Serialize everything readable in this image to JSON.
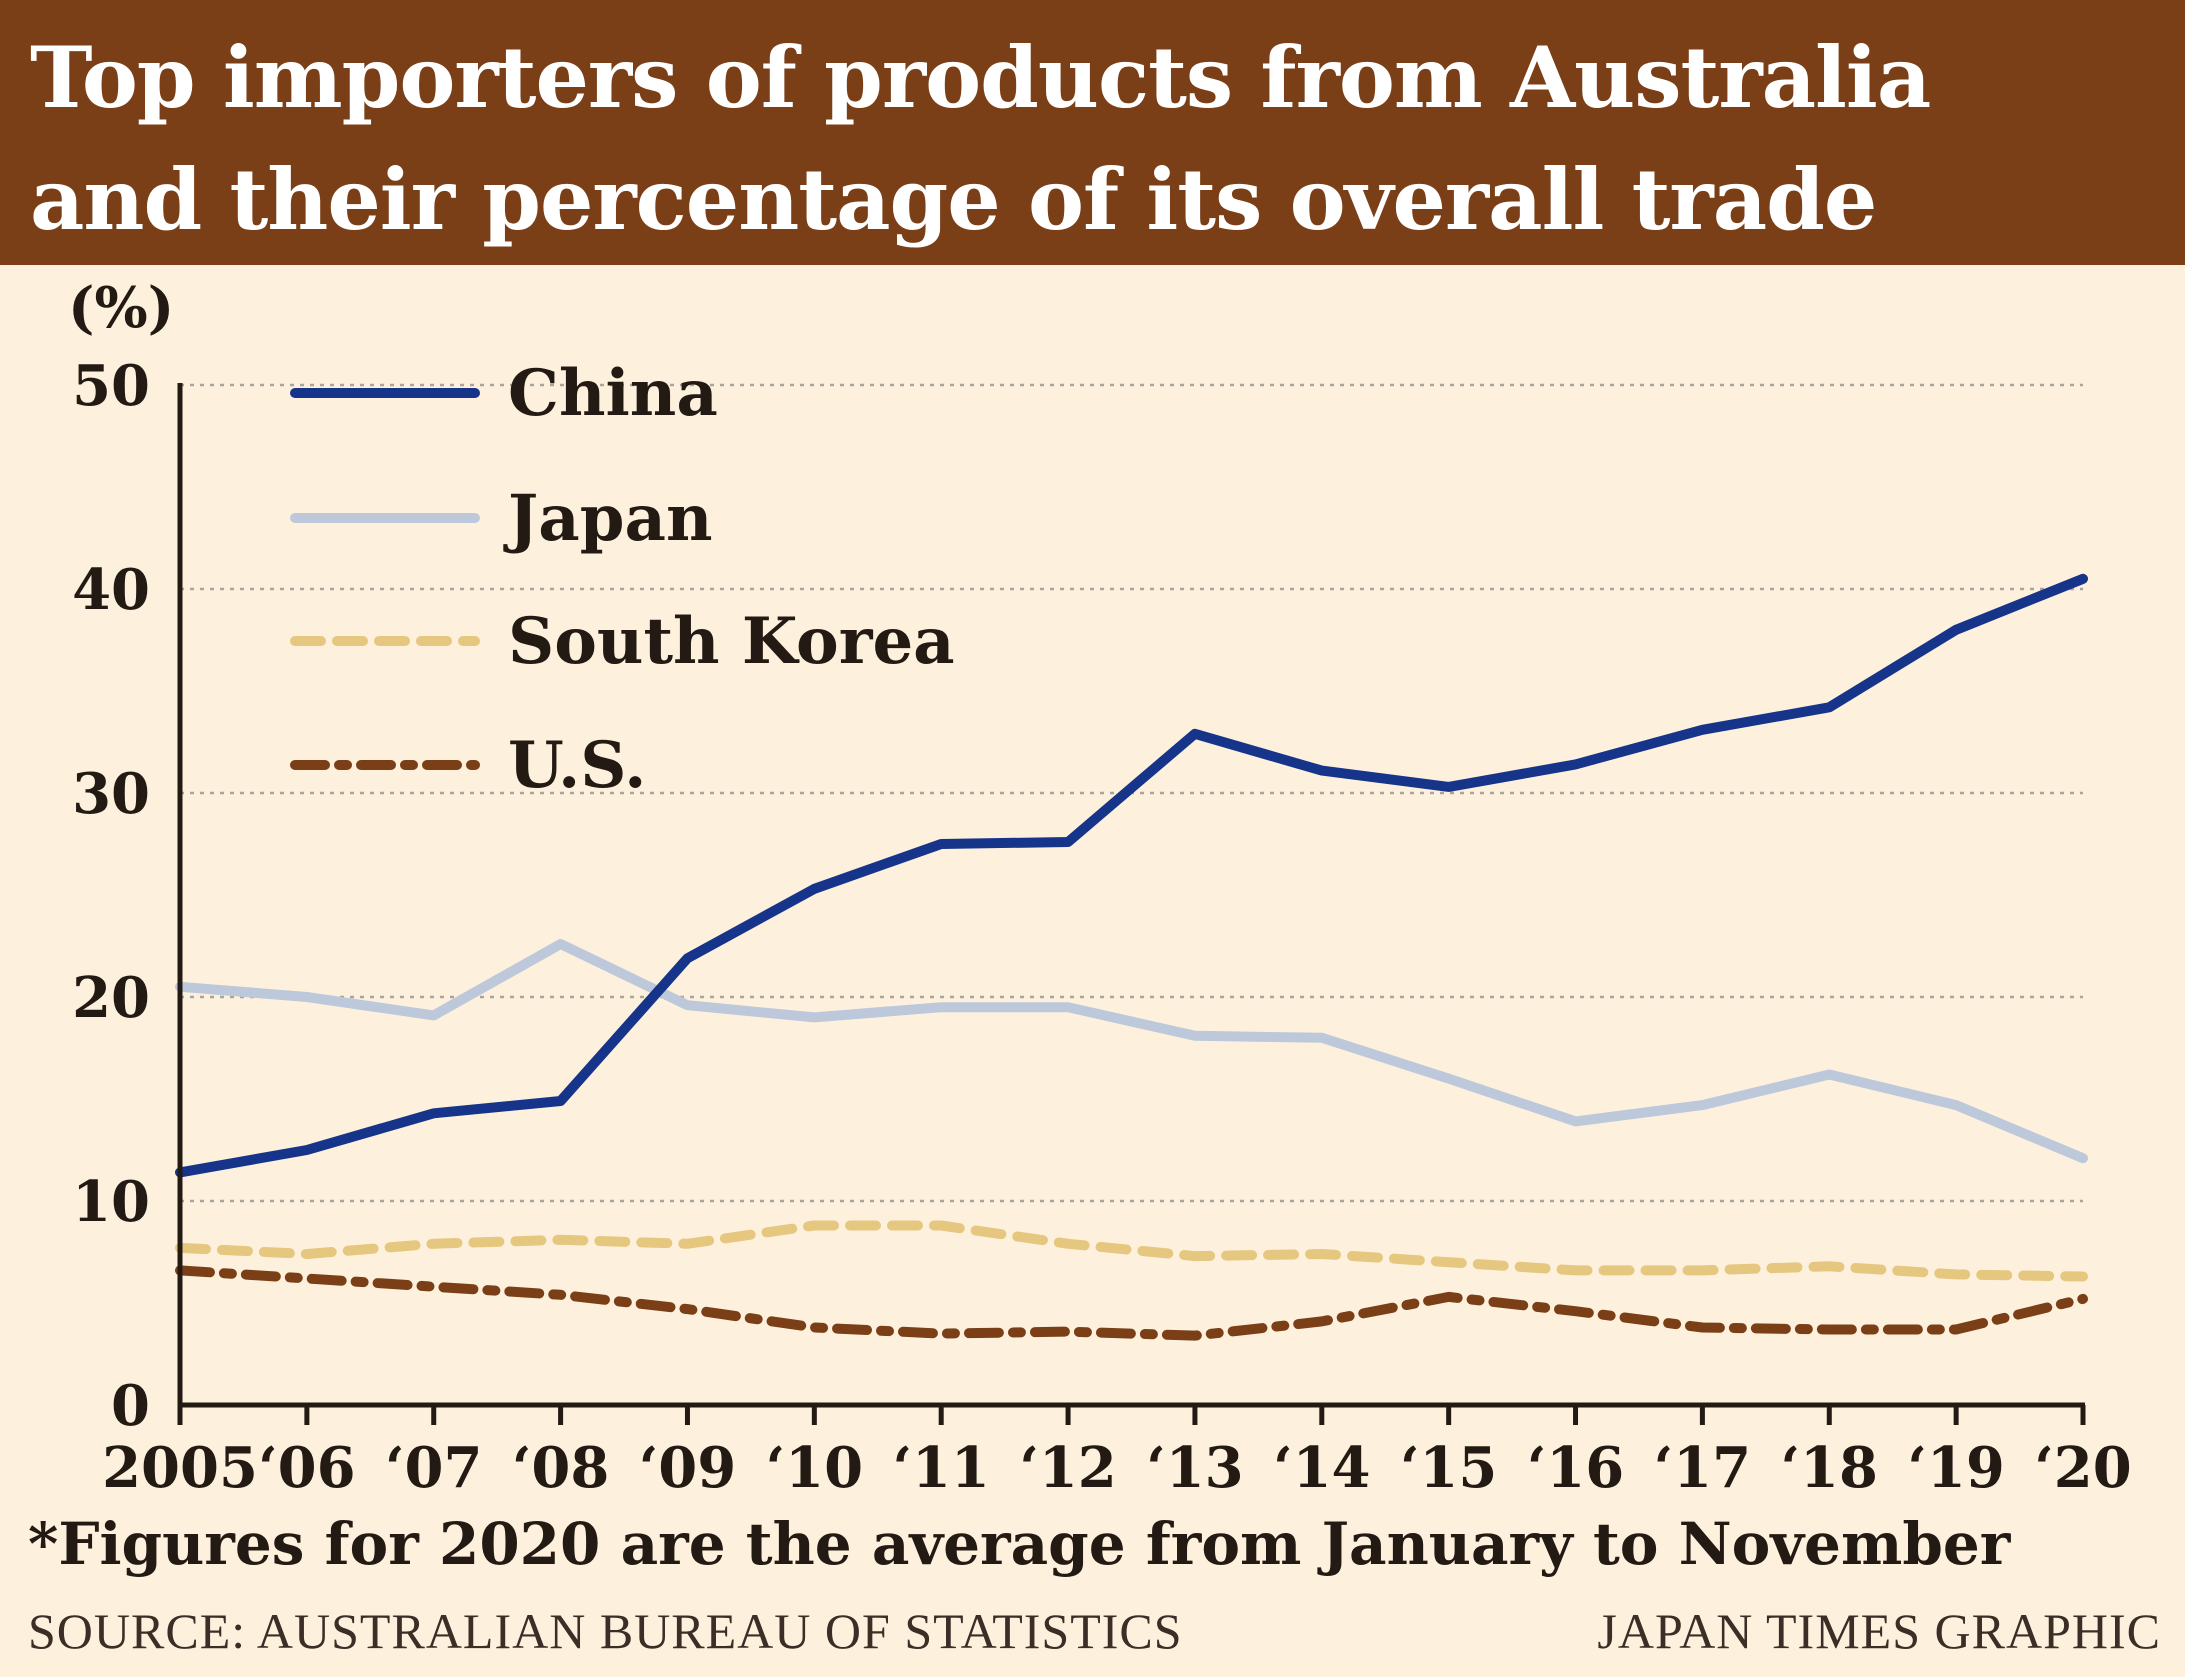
{
  "title_line1": "Top importers of products from Australia",
  "title_line2": "and their percentage of its overall trade",
  "note": "*Figures for 2020 are the average from January to November",
  "source": "SOURCE: AUSTRALIAN BUREAU OF STATISTICS",
  "credit": "JAPAN TIMES GRAPHIC",
  "colors": {
    "header": "#7b3f17",
    "background": "#fdf1de",
    "china": "#15348a",
    "japan": "#bdc8db",
    "south_korea": "#e6c77f",
    "us": "#7b3f17"
  },
  "chart_data": {
    "type": "line",
    "ylabel": "(%)",
    "ylim": [
      0,
      50
    ],
    "yticks": [
      0,
      10,
      20,
      30,
      40,
      50
    ],
    "grid": true,
    "legend_position": "top-left",
    "categories": [
      "2005",
      "‘06",
      "‘07",
      "‘08",
      "‘09",
      "‘10",
      "‘11",
      "‘12",
      "‘13",
      "‘14",
      "‘15",
      "‘16",
      "‘17",
      "‘18",
      "‘19",
      "‘20"
    ],
    "series": [
      {
        "name": "China",
        "style": "solid",
        "color": "#15348a",
        "values": [
          11.4,
          12.5,
          14.3,
          14.9,
          21.9,
          25.3,
          27.5,
          27.6,
          32.9,
          31.1,
          30.3,
          31.4,
          33.1,
          34.2,
          38.0,
          40.5
        ]
      },
      {
        "name": "Japan",
        "style": "solid",
        "color": "#bdc8db",
        "values": [
          20.5,
          20.0,
          19.1,
          22.6,
          19.6,
          19.0,
          19.5,
          19.5,
          18.1,
          18.0,
          16.0,
          13.9,
          14.7,
          16.2,
          14.7,
          12.1
        ]
      },
      {
        "name": "South Korea",
        "style": "dashed",
        "color": "#e6c77f",
        "values": [
          7.7,
          7.4,
          7.9,
          8.1,
          7.9,
          8.8,
          8.8,
          7.9,
          7.3,
          7.4,
          7.0,
          6.6,
          6.6,
          6.8,
          6.4,
          6.3
        ]
      },
      {
        "name": "U.S.",
        "style": "dashdot",
        "color": "#7b3f17",
        "values": [
          6.6,
          6.2,
          5.8,
          5.4,
          4.7,
          3.8,
          3.5,
          3.6,
          3.4,
          4.1,
          5.3,
          4.6,
          3.8,
          3.7,
          3.7,
          5.2
        ]
      }
    ]
  }
}
